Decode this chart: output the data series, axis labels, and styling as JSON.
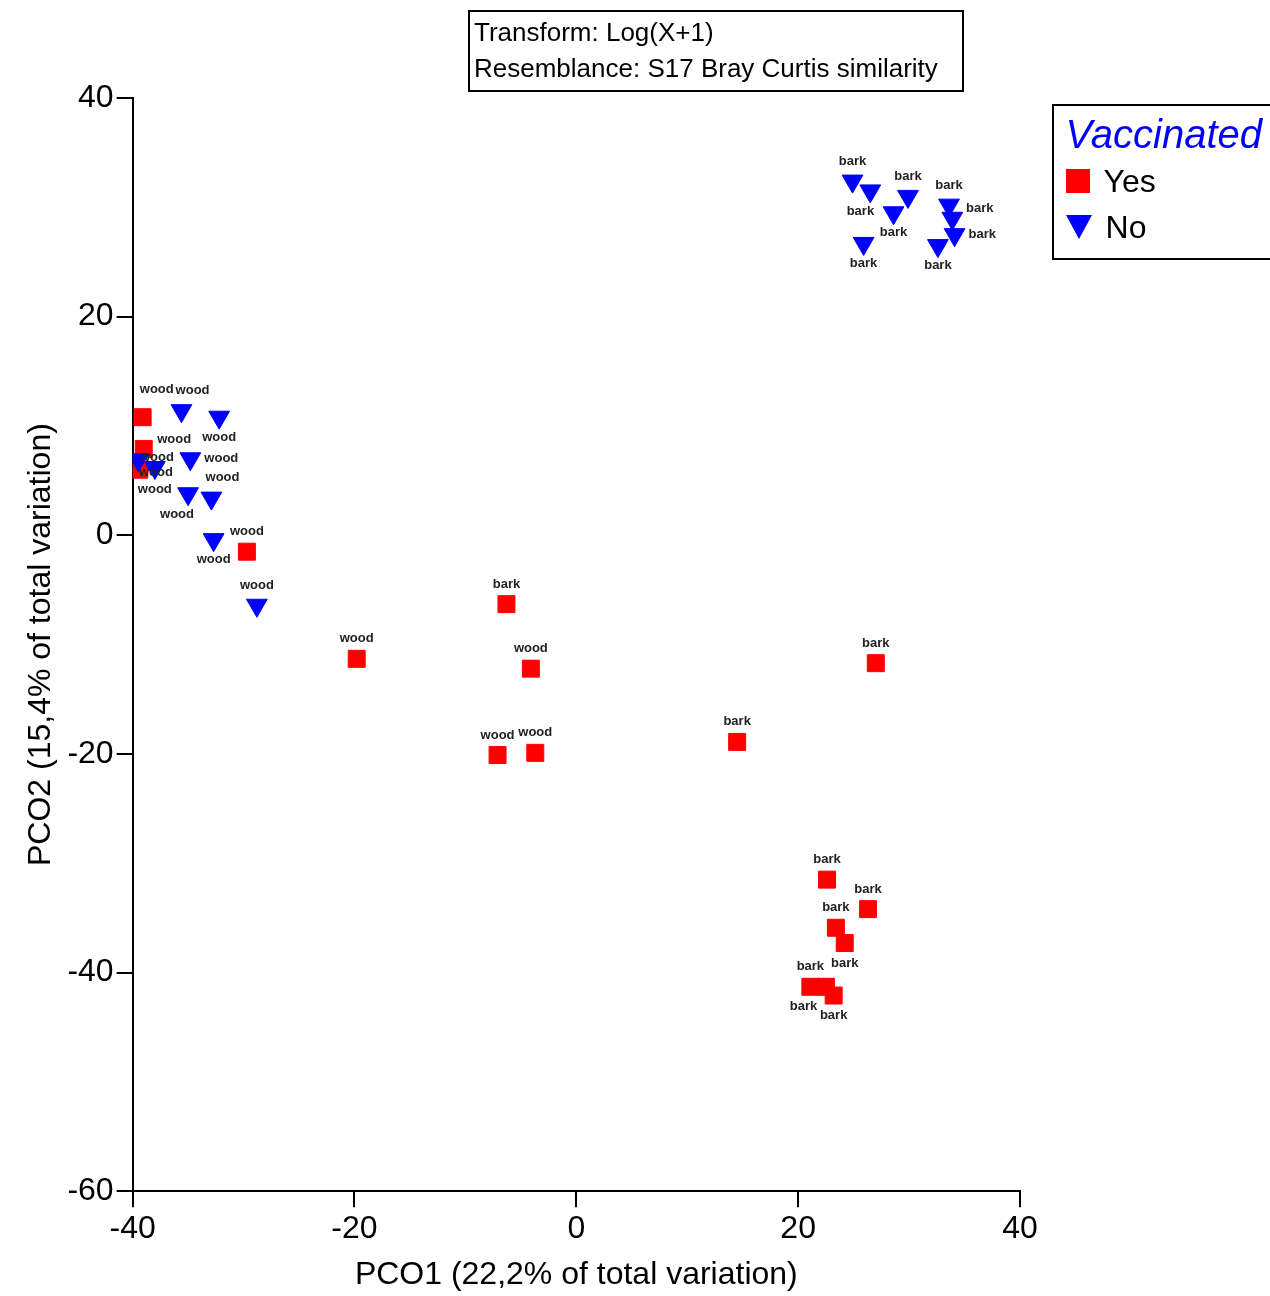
{
  "chart_data": {
    "type": "scatter",
    "xlabel": "PCO1 (22,2% of total variation)",
    "ylabel": "PCO2 (15,4% of total variation)",
    "annotations": [
      "Transform: Log(X+1)",
      "Resemblance: S17 Bray Curtis similarity"
    ],
    "legend_title": "Vaccinated",
    "legend": "top right",
    "grid": false,
    "xlim": [
      -40,
      40
    ],
    "xticks": [
      -40,
      -20,
      0,
      20,
      40
    ],
    "ylim": [
      -60,
      40
    ],
    "yticks": [
      -60,
      -40,
      -20,
      0,
      20,
      40
    ],
    "series": [
      {
        "name": "Yes",
        "color": "#ff0000",
        "marker": "square",
        "x": [
          -39.1,
          -39.0,
          -39.4,
          -29.7,
          -19.8,
          -4.1,
          -7.1,
          -3.7,
          -6.3,
          14.5,
          27.0,
          22.6,
          26.3,
          23.4,
          24.2,
          21.1,
          22.5,
          23.2
        ],
        "values": [
          10.8,
          7.9,
          6.0,
          -1.5,
          -11.3,
          -12.2,
          -20.1,
          -19.9,
          -6.3,
          -18.9,
          -11.7,
          -31.5,
          -34.2,
          -35.9,
          -37.3,
          -41.3,
          -41.3,
          -42.1
        ],
        "value_labels": [
          "wood",
          "wood",
          "wood",
          "wood",
          "wood",
          "wood",
          "wood",
          "wood",
          "bark",
          "bark",
          "bark",
          "bark",
          "bark",
          "bark",
          "bark",
          "bark",
          "bark",
          "bark"
        ]
      },
      {
        "name": "No",
        "color": "#0000ff",
        "marker": "triangle",
        "x": [
          -35.6,
          -32.2,
          -39.5,
          -38.0,
          -34.8,
          -35.0,
          -32.9,
          -32.7,
          -28.8,
          24.9,
          26.5,
          25.9,
          28.6,
          29.9,
          32.6,
          33.9,
          34.1,
          33.6
        ],
        "values": [
          11.4,
          10.8,
          6.9,
          6.2,
          7.0,
          3.8,
          3.4,
          -0.4,
          -6.4,
          32.4,
          31.5,
          26.7,
          29.5,
          31.0,
          26.5,
          29.0,
          27.5,
          30.2
        ],
        "value_labels": [
          "wood",
          "wood",
          "wood",
          "wood",
          "wood",
          "wood",
          "wood",
          "wood",
          "wood",
          "bark",
          "bark",
          "bark",
          "bark",
          "bark",
          "bark",
          "bark",
          "bark",
          "bark"
        ]
      }
    ]
  }
}
